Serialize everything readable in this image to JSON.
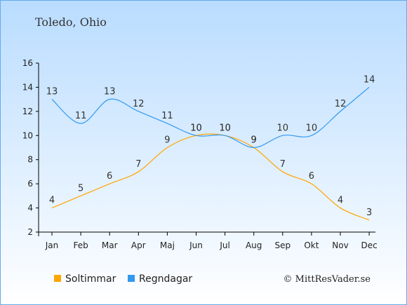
{
  "chart_data": {
    "type": "line",
    "title": "Toledo, Ohio",
    "categories": [
      "Jan",
      "Feb",
      "Mar",
      "Apr",
      "Maj",
      "Jun",
      "Jul",
      "Aug",
      "Sep",
      "Okt",
      "Nov",
      "Dec"
    ],
    "ylim": [
      2,
      16
    ],
    "yticks": [
      2,
      4,
      6,
      8,
      10,
      12,
      14,
      16
    ],
    "series": [
      {
        "name": "Soltimmar",
        "color": "#FFA500",
        "values": [
          4,
          5,
          6,
          7,
          9,
          10,
          10,
          9,
          7,
          6,
          4,
          3
        ]
      },
      {
        "name": "Regndagar",
        "color": "#3399EE",
        "values": [
          13,
          11,
          13,
          12,
          11,
          10,
          10,
          9,
          10,
          10,
          12,
          14
        ]
      }
    ],
    "legend_position": "bottom",
    "grid": false
  },
  "credit": "© MittResVader.se",
  "colors": {
    "background_top": "#BBDDFF",
    "background_bottom": "#FFFFFF",
    "border": "#66AAEE"
  }
}
